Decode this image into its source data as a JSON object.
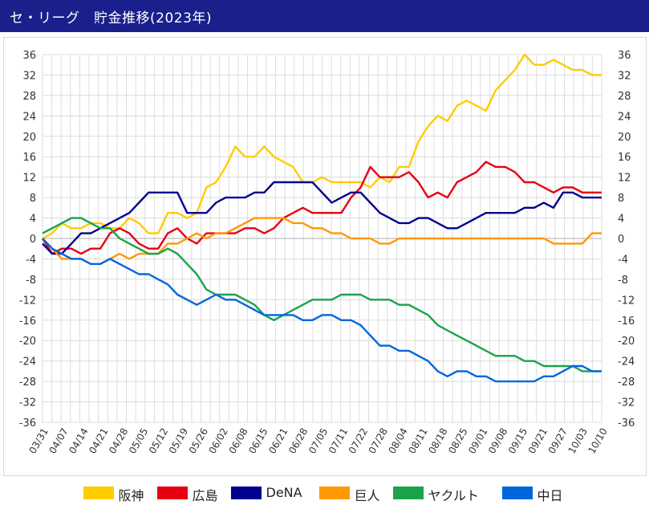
{
  "header": {
    "title": "セ・リーグ　貯金推移(2023年)"
  },
  "colors": {
    "header_bg": "#1a1f8c"
  },
  "chart_data": {
    "type": "line",
    "title": "セ・リーグ 貯金推移(2023年)",
    "xlabel": "",
    "ylabel": "",
    "ylim": [
      -36,
      36
    ],
    "yticks": [
      -36,
      -32,
      -28,
      -24,
      -20,
      -16,
      -12,
      -8,
      -4,
      0,
      4,
      8,
      12,
      16,
      20,
      24,
      28,
      32,
      36
    ],
    "x_tick_labels": [
      "03/31",
      "04/07",
      "04/14",
      "04/21",
      "04/28",
      "05/05",
      "05/12",
      "05/19",
      "05/26",
      "06/02",
      "06/08",
      "06/15",
      "06/21",
      "06/28",
      "07/05",
      "07/11",
      "07/22",
      "07/28",
      "08/04",
      "08/11",
      "08/18",
      "08/25",
      "09/01",
      "09/08",
      "09/15",
      "09/21",
      "09/27",
      "10/03",
      "10/10"
    ],
    "grid": true,
    "legend_position": "bottom",
    "series": [
      {
        "name": "阪神",
        "color": "#ffcc00",
        "values": [
          0,
          1,
          3,
          2,
          2,
          3,
          3,
          2,
          2,
          4,
          3,
          1,
          1,
          5,
          5,
          4,
          5,
          10,
          11,
          14,
          18,
          16,
          16,
          18,
          16,
          15,
          14,
          11,
          11,
          12,
          11,
          11,
          11,
          11,
          10,
          12,
          11,
          14,
          14,
          19,
          22,
          24,
          23,
          26,
          27,
          26,
          25,
          29,
          31,
          33,
          36,
          34,
          34,
          35,
          34,
          33,
          33,
          32,
          32
        ]
      },
      {
        "name": "広島",
        "color": "#e60012",
        "values": [
          0,
          -3,
          -2,
          -2,
          -3,
          -2,
          -2,
          1,
          2,
          1,
          -1,
          -2,
          -2,
          1,
          2,
          0,
          -1,
          1,
          1,
          1,
          1,
          2,
          2,
          1,
          2,
          4,
          5,
          6,
          5,
          5,
          5,
          5,
          8,
          10,
          14,
          12,
          12,
          12,
          13,
          11,
          8,
          9,
          8,
          11,
          12,
          13,
          15,
          14,
          14,
          13,
          11,
          11,
          10,
          9,
          10,
          10,
          9,
          9,
          9
        ]
      },
      {
        "name": "DeNA",
        "color": "#000090",
        "values": [
          -1,
          -3,
          -3,
          -1,
          1,
          1,
          2,
          3,
          4,
          5,
          7,
          9,
          9,
          9,
          9,
          5,
          5,
          5,
          7,
          8,
          8,
          8,
          9,
          9,
          11,
          11,
          11,
          11,
          11,
          9,
          7,
          8,
          9,
          9,
          7,
          5,
          4,
          3,
          3,
          4,
          4,
          3,
          2,
          2,
          3,
          4,
          5,
          5,
          5,
          5,
          6,
          6,
          7,
          6,
          9,
          9,
          8,
          8,
          8
        ]
      },
      {
        "name": "巨人",
        "color": "#ff9900",
        "values": [
          0,
          -2,
          -4,
          -4,
          -4,
          -5,
          -5,
          -4,
          -3,
          -4,
          -3,
          -3,
          -3,
          -1,
          -1,
          0,
          1,
          0,
          1,
          1,
          2,
          3,
          4,
          4,
          4,
          4,
          3,
          3,
          2,
          2,
          1,
          1,
          0,
          0,
          0,
          -1,
          -1,
          0,
          0,
          0,
          0,
          0,
          0,
          0,
          0,
          0,
          0,
          0,
          0,
          0,
          0,
          0,
          0,
          -1,
          -1,
          -1,
          -1,
          1,
          1
        ]
      },
      {
        "name": "ヤクルト",
        "color": "#1aa34a",
        "values": [
          1,
          2,
          3,
          4,
          4,
          3,
          2,
          2,
          0,
          -1,
          -2,
          -3,
          -3,
          -2,
          -3,
          -5,
          -7,
          -10,
          -11,
          -11,
          -11,
          -12,
          -13,
          -15,
          -16,
          -15,
          -14,
          -13,
          -12,
          -12,
          -12,
          -11,
          -11,
          -11,
          -12,
          -12,
          -12,
          -13,
          -13,
          -14,
          -15,
          -17,
          -18,
          -19,
          -20,
          -21,
          -22,
          -23,
          -23,
          -23,
          -24,
          -24,
          -25,
          -25,
          -25,
          -25,
          -26,
          -26,
          -26
        ]
      },
      {
        "name": "中日",
        "color": "#0066dd",
        "values": [
          0,
          -2,
          -3,
          -4,
          -4,
          -5,
          -5,
          -4,
          -5,
          -6,
          -7,
          -7,
          -8,
          -9,
          -11,
          -12,
          -13,
          -12,
          -11,
          -12,
          -12,
          -13,
          -14,
          -15,
          -15,
          -15,
          -15,
          -16,
          -16,
          -15,
          -15,
          -16,
          -16,
          -17,
          -19,
          -21,
          -21,
          -22,
          -22,
          -23,
          -24,
          -26,
          -27,
          -26,
          -26,
          -27,
          -27,
          -28,
          -28,
          -28,
          -28,
          -28,
          -27,
          -27,
          -26,
          -25,
          -25,
          -26,
          -26
        ]
      }
    ]
  }
}
